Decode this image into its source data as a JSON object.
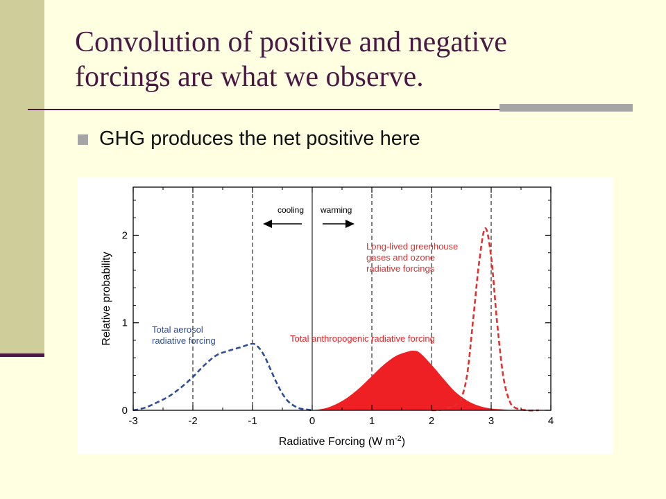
{
  "slide": {
    "title_line1": "Convolution of positive and negative",
    "title_line2": "forcings are what we observe.",
    "bullet": "GHG produces the net positive here"
  },
  "colors": {
    "background": "#FFFFE1",
    "accent_bar": "#CFCE9A",
    "title": "#4B1845",
    "aerosol": "#2E4E9C",
    "anthropogenic": "#EE2024",
    "ghg": "#E03030"
  },
  "chart_data": {
    "type": "area",
    "xlabel": "Radiative Forcing",
    "xlabel_unit": "(W m",
    "xlabel_unit_exp": "-2",
    "xlabel_unit_close": ")",
    "ylabel": "Relative probability",
    "xlim": [
      -3,
      4
    ],
    "ylim": [
      0,
      2.55
    ],
    "x_ticks": [
      -3,
      -2,
      -1,
      0,
      1,
      2,
      3,
      4
    ],
    "x_tick_labels": [
      "-3",
      "-2",
      "-1",
      "0",
      "1",
      "2",
      "3",
      "4"
    ],
    "y_ticks": [
      0,
      1,
      2
    ],
    "y_tick_labels": [
      "0",
      "1",
      "2"
    ],
    "vertical_dashed_lines": [
      -2,
      -1,
      1,
      2,
      3
    ],
    "vertical_solid_line": 0,
    "arrows": {
      "left_label": "cooling",
      "right_label": "warming"
    },
    "series": [
      {
        "name": "Total aerosol radiative forcing",
        "label_lines": [
          "Total aerosol",
          "radiative forcing"
        ],
        "style": "dashed",
        "color": "#2E4E9C",
        "x": [
          -3.0,
          -2.8,
          -2.6,
          -2.4,
          -2.2,
          -2.0,
          -1.8,
          -1.6,
          -1.4,
          -1.2,
          -1.0,
          -0.9,
          -0.8,
          -0.7,
          -0.6,
          -0.5,
          -0.4,
          -0.3,
          -0.2,
          -0.1,
          0.0
        ],
        "y": [
          0.0,
          0.03,
          0.09,
          0.16,
          0.26,
          0.38,
          0.52,
          0.63,
          0.68,
          0.72,
          0.76,
          0.72,
          0.62,
          0.47,
          0.32,
          0.19,
          0.1,
          0.05,
          0.02,
          0.01,
          0.0
        ]
      },
      {
        "name": "Total anthropogenic radiative forcing",
        "label_lines": [
          "Total anthropogenic radiative forcing"
        ],
        "style": "filled",
        "color": "#EE2024",
        "x": [
          0.0,
          0.2,
          0.4,
          0.6,
          0.8,
          1.0,
          1.2,
          1.4,
          1.6,
          1.7,
          1.8,
          2.0,
          2.2,
          2.4,
          2.6,
          2.8,
          3.0,
          3.2,
          3.4,
          3.5
        ],
        "y": [
          0.0,
          0.02,
          0.07,
          0.15,
          0.26,
          0.39,
          0.52,
          0.62,
          0.67,
          0.68,
          0.66,
          0.52,
          0.36,
          0.21,
          0.11,
          0.05,
          0.02,
          0.01,
          0.0,
          0.0
        ]
      },
      {
        "name": "Long-lived greenhouse gases and ozone radiative forcings",
        "label_lines": [
          "Long-lived greenhouse",
          "gases and ozone",
          "radiative forcings"
        ],
        "style": "dashed",
        "color": "#E03030",
        "x": [
          2.0,
          2.2,
          2.4,
          2.5,
          2.6,
          2.7,
          2.8,
          2.9,
          3.0,
          3.1,
          3.2,
          3.3,
          3.4,
          3.6,
          3.8
        ],
        "y": [
          0.0,
          0.01,
          0.06,
          0.14,
          0.42,
          1.05,
          1.7,
          2.08,
          1.75,
          1.0,
          0.4,
          0.12,
          0.03,
          0.0,
          0.0
        ]
      }
    ]
  }
}
